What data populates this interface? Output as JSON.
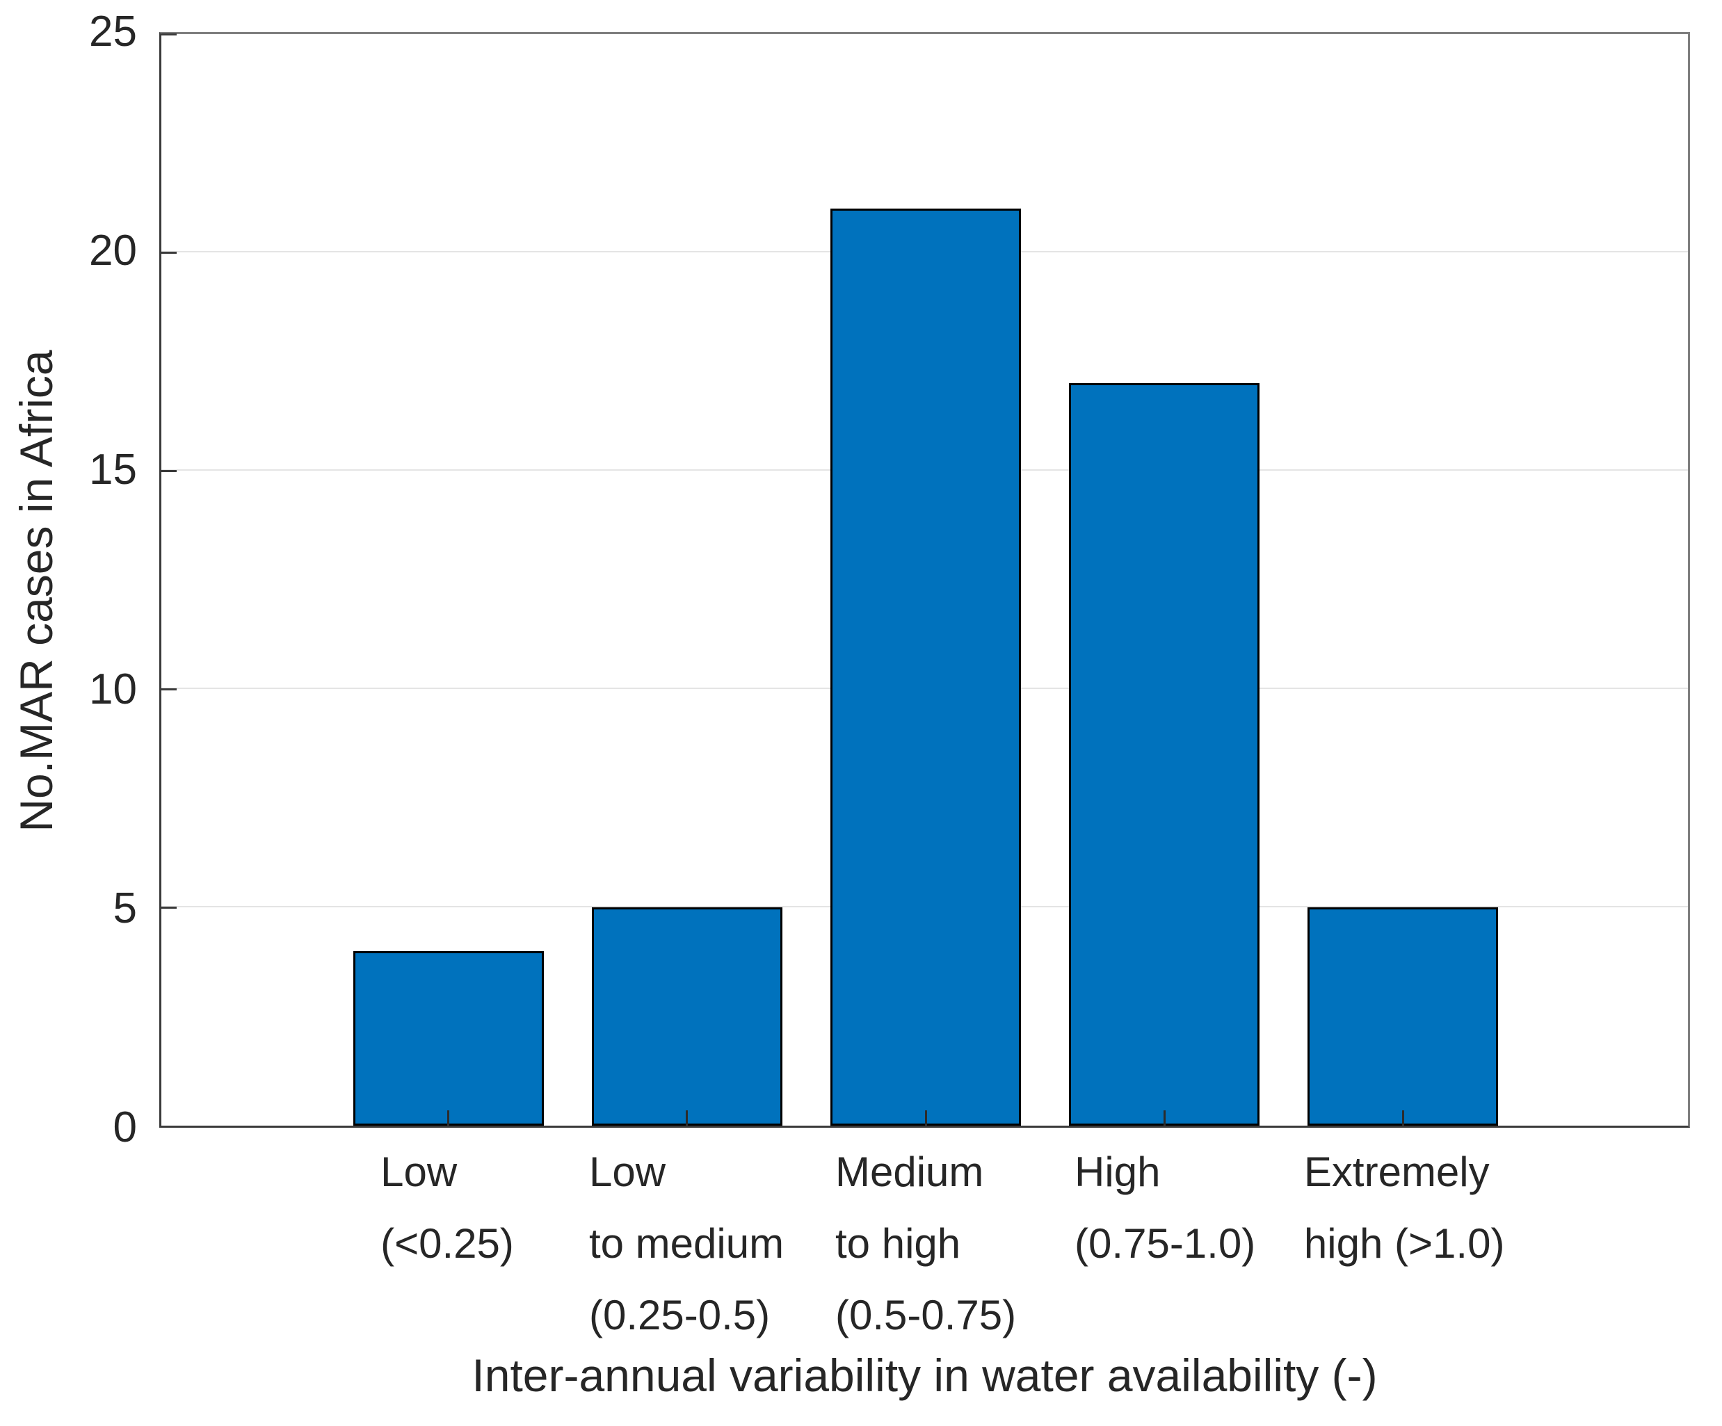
{
  "chart_data": {
    "type": "bar",
    "title": "",
    "xlabel": "Inter-annual variability in water availability (-)",
    "ylabel": "No.MAR cases in Africa",
    "categories": [
      [
        "Low",
        "(<0.25)"
      ],
      [
        "Low",
        "to medium",
        "(0.25-0.5)"
      ],
      [
        "Medium",
        "to high",
        "(0.5-0.75)"
      ],
      [
        "High",
        "(0.75-1.0)"
      ],
      [
        "Extremely",
        "high (>1.0)"
      ]
    ],
    "values": [
      4,
      5,
      21,
      17,
      5
    ],
    "ylim": [
      0,
      25
    ],
    "yticks": [
      0,
      5,
      10,
      15,
      20,
      25
    ],
    "grid": "horizontal-only",
    "legend": "none",
    "bar_color": "#0072BD",
    "bar_edge_color": "#000000",
    "grid_color": "#e4e4e4",
    "axis_color": "#3a3a3a",
    "text_color": "#262626"
  }
}
